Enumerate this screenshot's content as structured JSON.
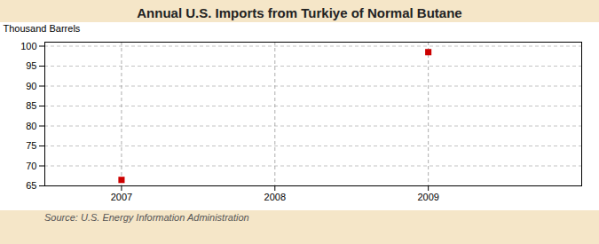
{
  "chart_data": {
    "type": "scatter",
    "title": "Annual U.S. Imports from Turkiye of Normal Butane",
    "ylabel": "Thousand Barrels",
    "source": "Source: U.S. Energy Information Administration",
    "x": [
      2007,
      2009
    ],
    "values": [
      66.5,
      98.5
    ],
    "color": "#cc0000",
    "marker": "square",
    "xlim": [
      2006.5,
      2010.0
    ],
    "xticks": [
      2007,
      2008,
      2009
    ],
    "ylim": [
      65,
      101
    ],
    "yticks": [
      65,
      70,
      75,
      80,
      85,
      90,
      95,
      100
    ],
    "grid": true
  }
}
